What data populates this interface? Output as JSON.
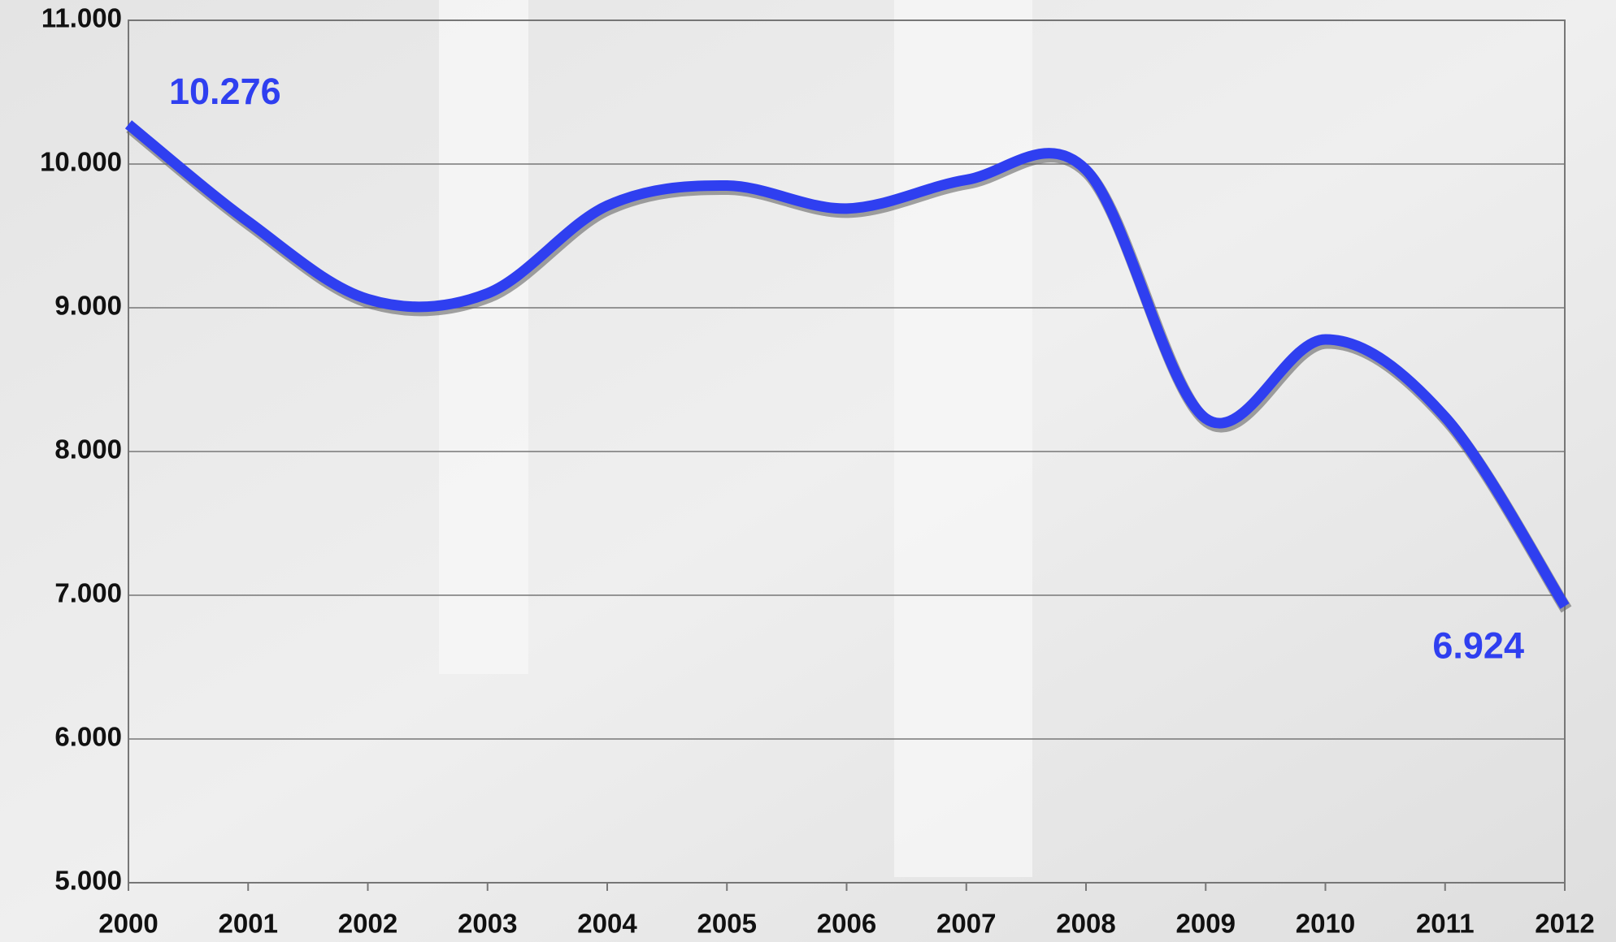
{
  "chart_data": {
    "type": "line",
    "x": [
      2000,
      2001,
      2002,
      2003,
      2004,
      2005,
      2006,
      2007,
      2008,
      2009,
      2010,
      2011,
      2012
    ],
    "values": [
      10276,
      9600,
      9060,
      9100,
      9710,
      9850,
      9690,
      9890,
      9960,
      8230,
      8780,
      8240,
      6924
    ],
    "value_labels": [
      "10.276",
      null,
      null,
      null,
      null,
      null,
      null,
      null,
      null,
      null,
      null,
      null,
      "6.924"
    ],
    "color": "#2f3ff0",
    "xlim": [
      2000,
      2012
    ],
    "xticks": [
      2000,
      2001,
      2002,
      2003,
      2004,
      2005,
      2006,
      2007,
      2008,
      2009,
      2010,
      2011,
      2012
    ],
    "ylim": [
      5000,
      11000
    ],
    "yticks": [
      {
        "value": 5000,
        "label": "5.000"
      },
      {
        "value": 6000,
        "label": "6.000"
      },
      {
        "value": 7000,
        "label": "7.000"
      },
      {
        "value": 8000,
        "label": "8.000"
      },
      {
        "value": 9000,
        "label": "9.000"
      },
      {
        "value": 10000,
        "label": "10.000"
      },
      {
        "value": 11000,
        "label": "11.000"
      }
    ],
    "grid": true
  }
}
